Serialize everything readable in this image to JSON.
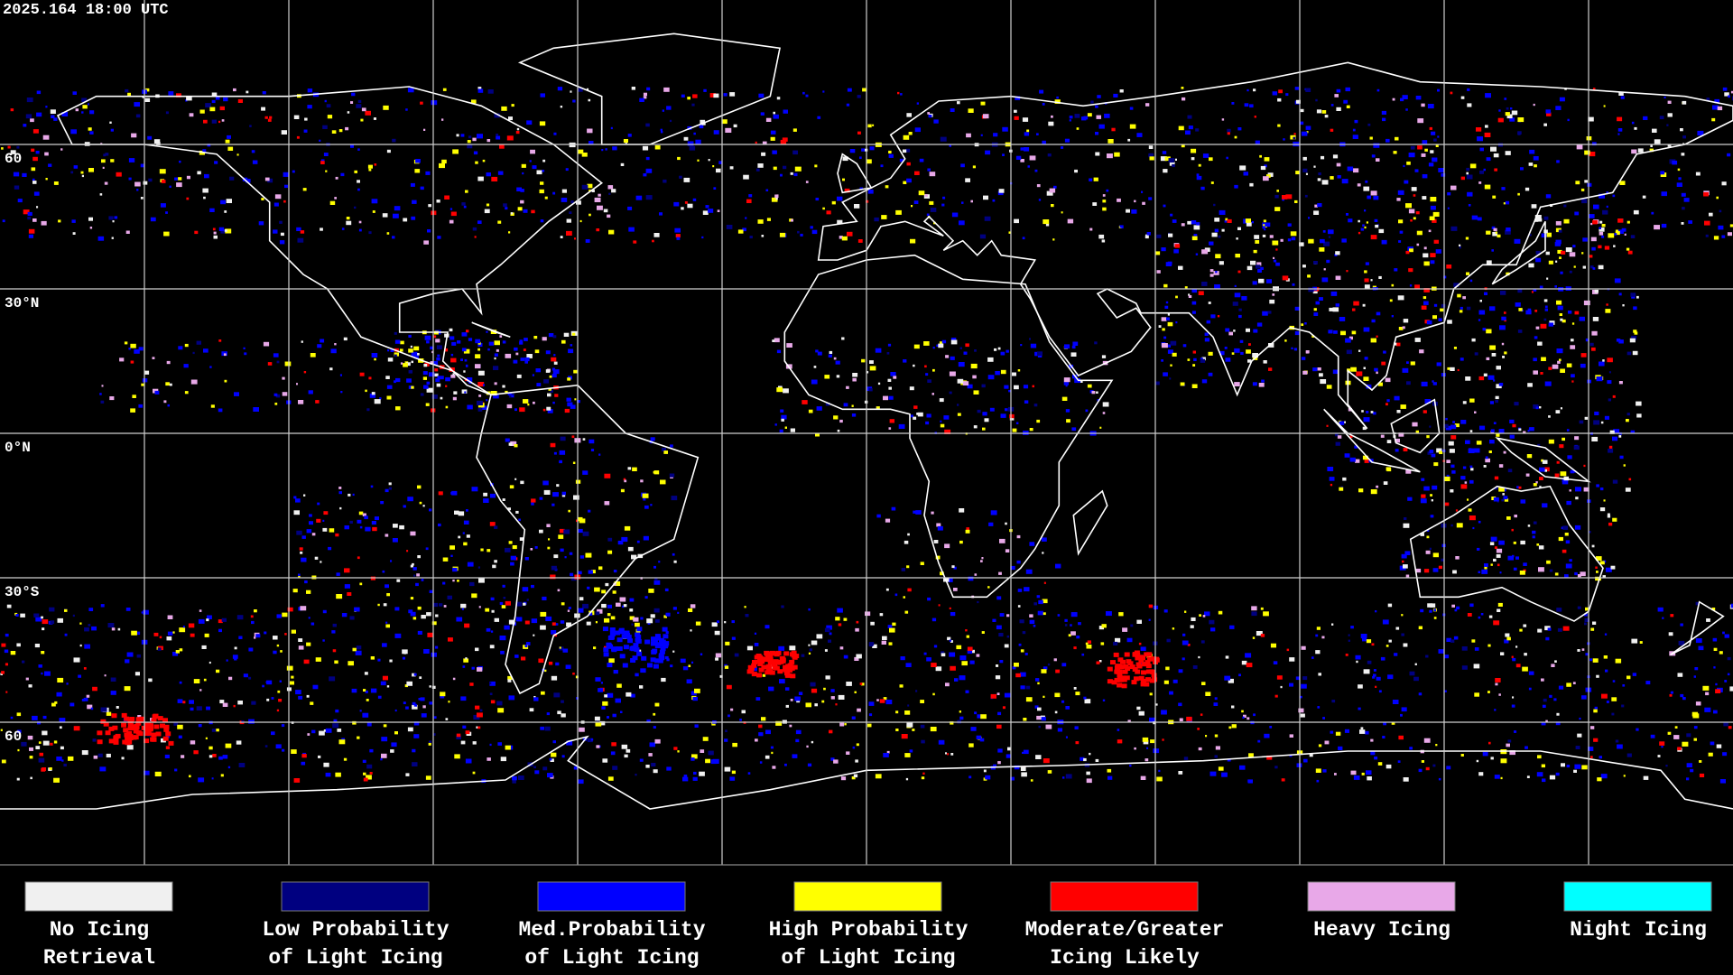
{
  "header": {
    "timestamp": "2025.164 18:00 UTC"
  },
  "map": {
    "lat_labels": [
      "60",
      "30°N",
      "0°N",
      "30°S",
      "60"
    ]
  },
  "legend": {
    "items": [
      {
        "lines": [
          "No Icing",
          "Retrieval"
        ],
        "color": "#f0f0f0"
      },
      {
        "lines": [
          "Low Probability",
          "of Light Icing"
        ],
        "color": "#000080"
      },
      {
        "lines": [
          "Med.Probability",
          "of Light Icing"
        ],
        "color": "#0000ff"
      },
      {
        "lines": [
          "High Probability",
          "of Light Icing"
        ],
        "color": "#ffff00"
      },
      {
        "lines": [
          "Moderate/Greater",
          "Icing Likely"
        ],
        "color": "#ff0000"
      },
      {
        "lines": [
          "Heavy Icing"
        ],
        "color": "#e8a8e8"
      },
      {
        "lines": [
          "Night Icing"
        ],
        "color": "#00ffff"
      }
    ]
  }
}
